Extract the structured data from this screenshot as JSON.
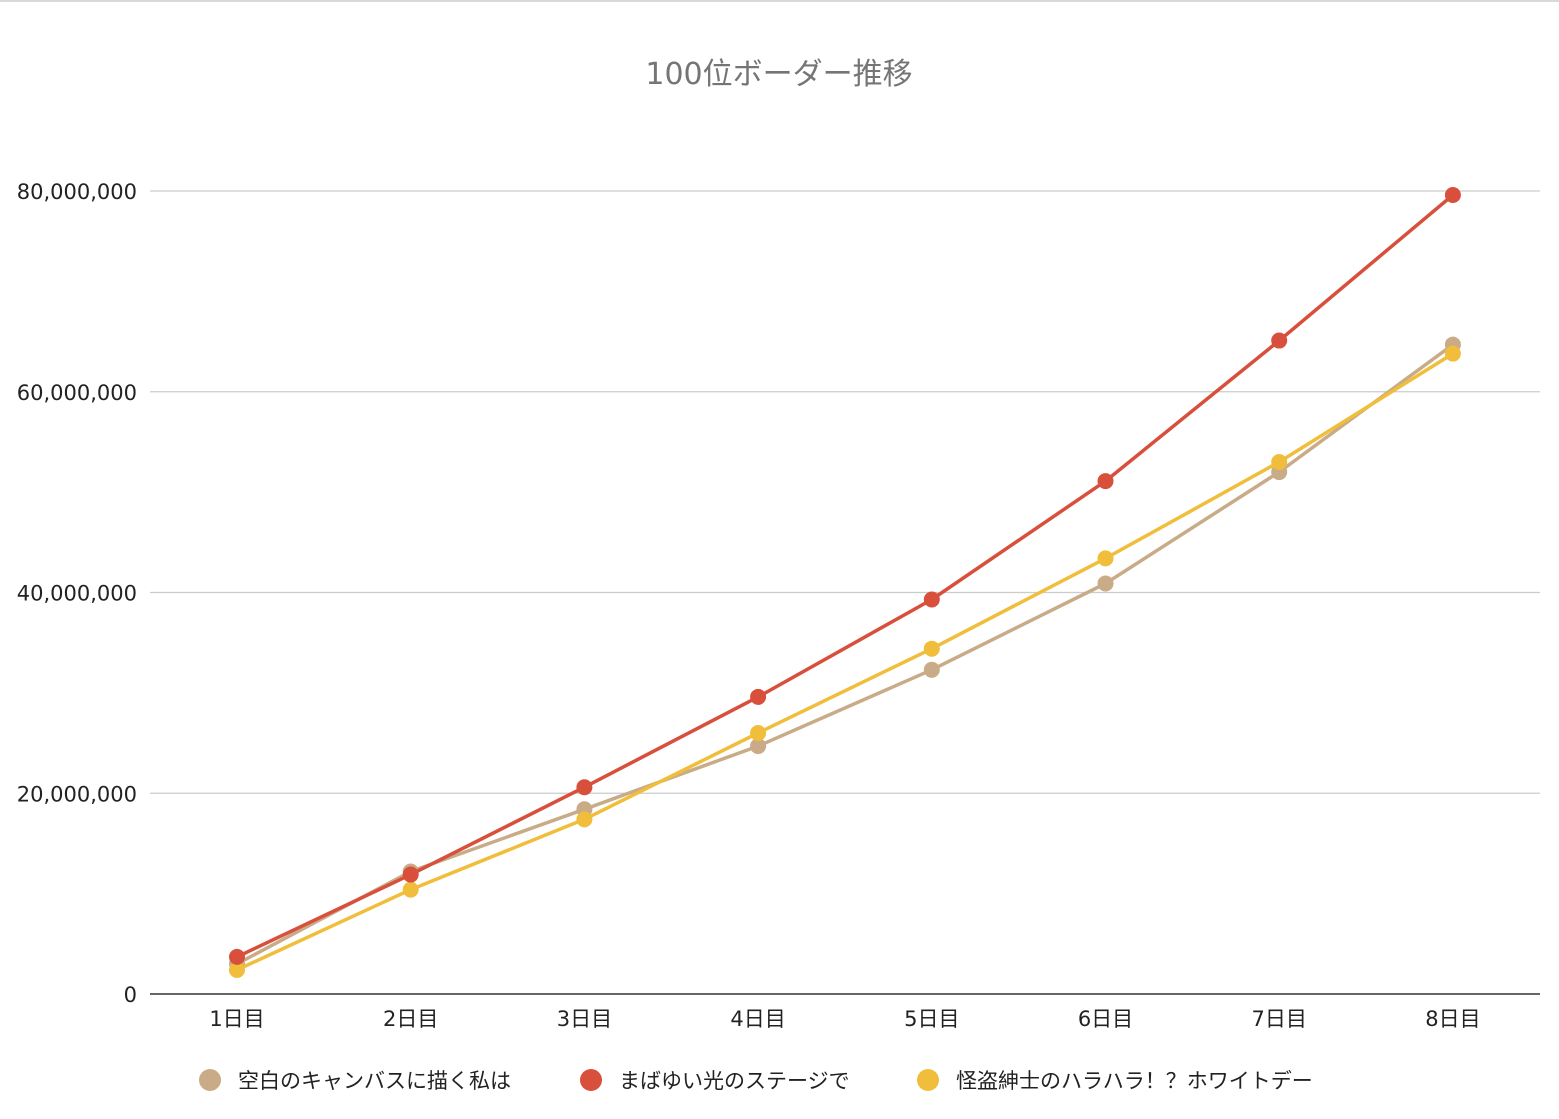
{
  "chart_data": {
    "type": "line",
    "title": "100位ボーダー推移",
    "categories": [
      "1日目",
      "2日目",
      "3日目",
      "4日目",
      "5日目",
      "6日目",
      "7日目",
      "8日目"
    ],
    "ylim": [
      0,
      80000000
    ],
    "yticks": [
      0,
      20000000,
      40000000,
      60000000,
      80000000
    ],
    "ytick_labels": [
      "0",
      "20,000,000",
      "40,000,000",
      "60,000,000",
      "80,000,000"
    ],
    "grid": true,
    "legend_position": "bottom",
    "series": [
      {
        "name": "空白のキャンバスに描く私は",
        "color": "#c9ab87",
        "values": [
          3000000,
          12200000,
          18400000,
          24700000,
          32300000,
          40900000,
          52000000,
          64700000
        ]
      },
      {
        "name": "まばゆい光のステージで",
        "color": "#d84f3c",
        "values": [
          3700000,
          11900000,
          20600000,
          29600000,
          39300000,
          51100000,
          65100000,
          79600000
        ]
      },
      {
        "name": "怪盗紳士のハラハラ！？ホワイトデー",
        "color": "#f0be3b",
        "values": [
          2400000,
          10400000,
          17400000,
          26000000,
          34400000,
          43400000,
          53000000,
          63800000
        ]
      }
    ]
  }
}
